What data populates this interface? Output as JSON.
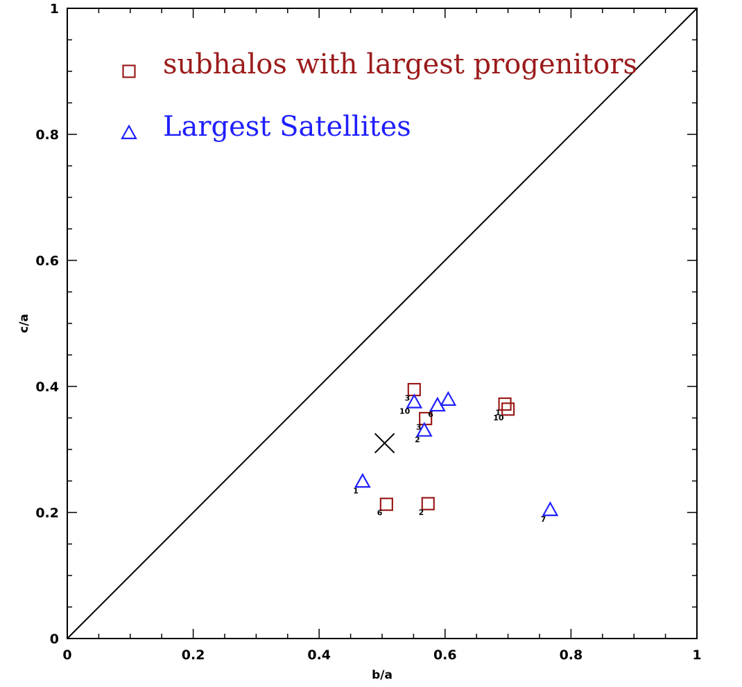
{
  "chart_data": {
    "type": "scatter",
    "xlabel": "b/a",
    "ylabel": "c/a",
    "xlim": [
      0,
      1
    ],
    "ylim": [
      0,
      1
    ],
    "xticks": [
      "0",
      "0.2",
      "0.4",
      "0.6",
      "0.8",
      "1"
    ],
    "yticks": [
      "0",
      "0.2",
      "0.4",
      "0.6",
      "0.8",
      "1"
    ],
    "grid": false,
    "legend_position": "top-left",
    "reference_line": {
      "x": [
        0,
        1
      ],
      "y": [
        0,
        1
      ]
    },
    "colors": {
      "subhalos": "#9b1b1b",
      "satellites": "#1f1fff",
      "line": "#000000"
    },
    "series": [
      {
        "name": "subhalos with largest progenitors",
        "marker": "square",
        "points": [
          {
            "x": 0.551,
            "y": 0.395,
            "label": "3"
          },
          {
            "x": 0.569,
            "y": 0.349,
            "label": "3"
          },
          {
            "x": 0.507,
            "y": 0.213,
            "label": "6"
          },
          {
            "x": 0.573,
            "y": 0.214,
            "label": "2"
          },
          {
            "x": 0.695,
            "y": 0.372,
            "label": "1"
          },
          {
            "x": 0.7,
            "y": 0.364,
            "label": "10"
          }
        ]
      },
      {
        "name": "Largest Satellites",
        "marker": "triangle",
        "points": [
          {
            "x": 0.551,
            "y": 0.374,
            "label": "10"
          },
          {
            "x": 0.588,
            "y": 0.369,
            "label": "6"
          },
          {
            "x": 0.605,
            "y": 0.378,
            "label": ""
          },
          {
            "x": 0.567,
            "y": 0.329,
            "label": "2"
          },
          {
            "x": 0.469,
            "y": 0.248,
            "label": "1"
          },
          {
            "x": 0.767,
            "y": 0.203,
            "label": "7"
          }
        ]
      }
    ],
    "cross_marker": {
      "x": 0.504,
      "y": 0.31
    }
  }
}
